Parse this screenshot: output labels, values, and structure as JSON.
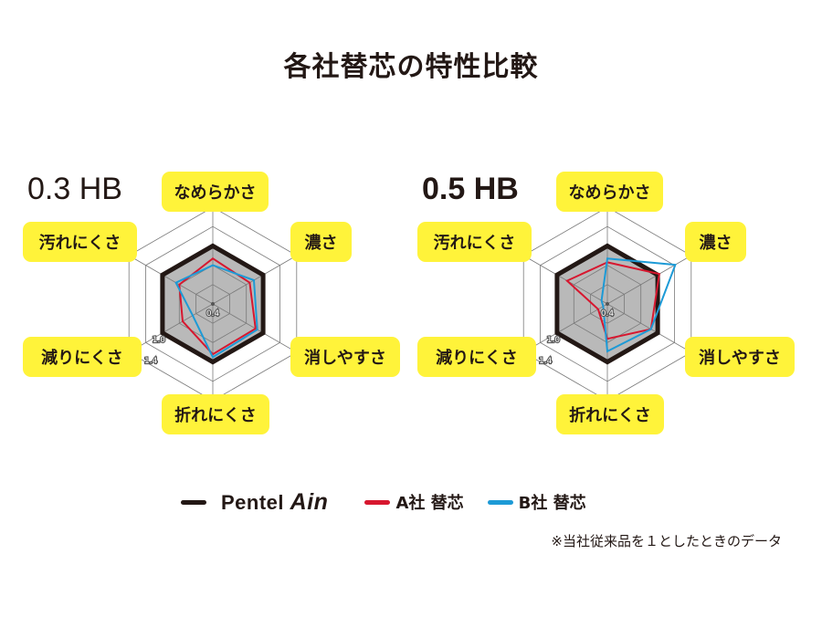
{
  "title": "各社替芯の特性比較",
  "note": "※当社従来品を１としたときのデータ",
  "colors": {
    "pentel": "#231815",
    "pentel_fill": "#b9b9b9",
    "a": "#d7172f",
    "b": "#1d9ad6",
    "label_bg": "#fff33a",
    "grid": "#7a7a7a"
  },
  "legend": [
    {
      "name": "Pentel Ain",
      "brand1": "Pentel",
      "brand2": "Ain",
      "color": "#231815"
    },
    {
      "name": "A社 替芯",
      "color": "#d7172f"
    },
    {
      "name": "B社 替芯",
      "color": "#1d9ad6"
    }
  ],
  "chart_data": [
    {
      "type": "radar",
      "title": "0.3 HB",
      "axes": [
        "なめらかさ",
        "濃さ",
        "消しやすさ",
        "折れにくさ",
        "減りにくさ",
        "汚れにくさ"
      ],
      "range": [
        0.4,
        1.4
      ],
      "grid": [
        0.6,
        0.8,
        1.0,
        1.2,
        1.4
      ],
      "tick_labels": [
        "0.4",
        "1.0",
        "1.4"
      ],
      "series": [
        {
          "name": "Pentel Ain",
          "values": [
            1.0,
            1.0,
            1.0,
            1.0,
            1.0,
            1.0
          ]
        },
        {
          "name": "A社 替芯",
          "values": [
            0.87,
            0.84,
            0.91,
            0.92,
            0.76,
            0.8
          ]
        },
        {
          "name": "B社 替芯",
          "values": [
            0.8,
            0.89,
            0.93,
            0.95,
            0.64,
            0.84
          ]
        }
      ]
    },
    {
      "type": "radar",
      "title": "0.5 HB",
      "axes": [
        "なめらかさ",
        "濃さ",
        "消しやすさ",
        "折れにくさ",
        "減りにくさ",
        "汚れにくさ"
      ],
      "range": [
        0.4,
        1.4
      ],
      "grid": [
        0.6,
        0.8,
        1.0,
        1.2,
        1.4
      ],
      "tick_labels": [
        "0.4",
        "1.0",
        "1.4"
      ],
      "series": [
        {
          "name": "Pentel Ain",
          "values": [
            1.0,
            1.0,
            1.0,
            1.0,
            1.0,
            1.0
          ]
        },
        {
          "name": "A社 替芯",
          "values": [
            0.83,
            1.02,
            0.92,
            0.76,
            0.51,
            0.88
          ]
        },
        {
          "name": "B社 替芯",
          "values": [
            0.87,
            1.21,
            0.92,
            0.89,
            0.45,
            0.47
          ]
        }
      ]
    }
  ]
}
